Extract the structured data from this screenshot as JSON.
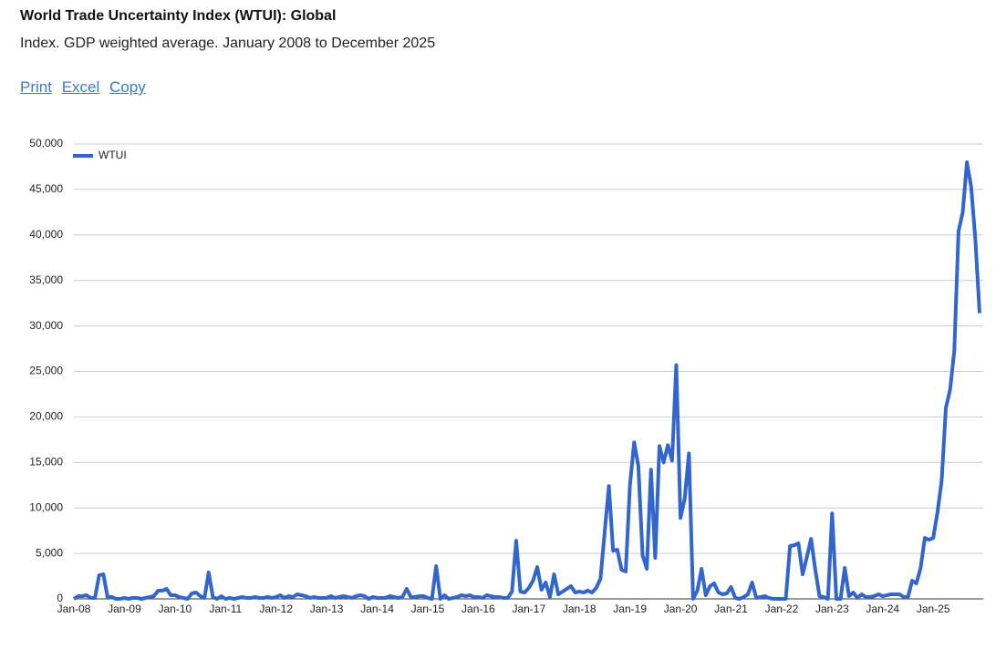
{
  "links": [
    "Print",
    "Excel",
    "Copy"
  ],
  "chart_data": {
    "type": "line",
    "title": "World Trade Uncertainty Index (WTUI): Global",
    "subtitle": "Index. GDP weighted average. January 2008 to December 2025",
    "categories": [
      "Jan-08",
      null,
      null,
      null,
      null,
      null,
      null,
      null,
      null,
      null,
      null,
      null,
      "Jan-09",
      null,
      null,
      null,
      null,
      null,
      null,
      null,
      null,
      null,
      null,
      null,
      "Jan-10",
      null,
      null,
      null,
      null,
      null,
      null,
      null,
      null,
      null,
      null,
      null,
      "Jan-11",
      null,
      null,
      null,
      null,
      null,
      null,
      null,
      null,
      null,
      null,
      null,
      "Jan-12",
      null,
      null,
      null,
      null,
      null,
      null,
      null,
      null,
      null,
      null,
      null,
      "Jan-13",
      null,
      null,
      null,
      null,
      null,
      null,
      null,
      null,
      null,
      null,
      null,
      "Jan-14",
      null,
      null,
      null,
      null,
      null,
      null,
      null,
      null,
      null,
      null,
      null,
      "Jan-15",
      null,
      null,
      null,
      null,
      null,
      null,
      null,
      null,
      null,
      null,
      null,
      "Jan-16",
      null,
      null,
      null,
      null,
      null,
      null,
      null,
      null,
      null,
      null,
      null,
      "Jan-17",
      null,
      null,
      null,
      null,
      null,
      null,
      null,
      null,
      null,
      null,
      null,
      "Jan-18",
      null,
      null,
      null,
      null,
      null,
      null,
      null,
      null,
      null,
      null,
      null,
      "Jan-19",
      null,
      null,
      null,
      null,
      null,
      null,
      null,
      null,
      null,
      null,
      null,
      "Jan-20",
      null,
      null,
      null,
      null,
      null,
      null,
      null,
      null,
      null,
      null,
      null,
      "Jan-21",
      null,
      null,
      null,
      null,
      null,
      null,
      null,
      null,
      null,
      null,
      null,
      "Jan-22",
      null,
      null,
      null,
      null,
      null,
      null,
      null,
      null,
      null,
      null,
      null,
      "Jan-23",
      null,
      null,
      null,
      null,
      null,
      null,
      null,
      null,
      null,
      null,
      null,
      "Jan-24",
      null,
      null,
      null,
      null,
      null,
      null,
      null,
      null,
      null,
      null,
      null,
      "Jan-25",
      null,
      null,
      null,
      null,
      null,
      null,
      null,
      null,
      null,
      null,
      null
    ],
    "series": [
      {
        "name": "WTUI",
        "color": "#3366cc",
        "values": [
          0,
          300,
          300,
          400,
          100,
          100,
          2600,
          2700,
          200,
          200,
          0,
          0,
          100,
          0,
          100,
          100,
          0,
          100,
          200,
          300,
          900,
          900,
          1100,
          400,
          400,
          200,
          100,
          0,
          600,
          700,
          300,
          100,
          2900,
          200,
          0,
          300,
          0,
          100,
          0,
          100,
          200,
          100,
          100,
          200,
          100,
          100,
          200,
          100,
          200,
          400,
          100,
          300,
          200,
          500,
          400,
          300,
          100,
          200,
          100,
          100,
          100,
          300,
          100,
          200,
          300,
          200,
          100,
          300,
          400,
          300,
          0,
          200,
          100,
          100,
          100,
          300,
          200,
          100,
          200,
          1100,
          200,
          200,
          300,
          300,
          100,
          0,
          3600,
          0,
          400,
          0,
          100,
          200,
          400,
          300,
          400,
          200,
          200,
          100,
          400,
          300,
          200,
          200,
          100,
          100,
          800,
          6400,
          800,
          700,
          1200,
          2000,
          3500,
          1000,
          1800,
          200,
          2700,
          500,
          800,
          1100,
          1400,
          700,
          800,
          700,
          900,
          700,
          1200,
          2200,
          7300,
          12400,
          5300,
          5400,
          3200,
          3000,
          12500,
          17200,
          14600,
          4800,
          3300,
          14200,
          4500,
          16800,
          15000,
          16900,
          15200,
          25700,
          8900,
          11000,
          16000,
          0,
          900,
          3300,
          400,
          1400,
          1700,
          700,
          500,
          600,
          1300,
          100,
          0,
          200,
          500,
          1800,
          100,
          200,
          300,
          100,
          0,
          0,
          0,
          0,
          5800,
          5900,
          6100,
          2700,
          4600,
          6600,
          3200,
          300,
          200,
          0,
          9400,
          0,
          0,
          3400,
          300,
          700,
          100,
          500,
          200,
          200,
          300,
          500,
          300,
          400,
          500,
          500,
          500,
          200,
          200,
          2000,
          1700,
          3400,
          6700,
          6500,
          6700,
          9500,
          13000,
          21000,
          23000,
          27300,
          40400,
          42500,
          48000,
          45300,
          39500,
          31400
        ]
      }
    ],
    "ylim": [
      0,
      50000
    ],
    "yticks": [
      0,
      {
        "value": 5000,
        "label": "5,000"
      },
      {
        "value": 10000,
        "label": "10,000"
      },
      {
        "value": 15000,
        "label": "15,000"
      },
      {
        "value": 20000,
        "label": "20,000"
      },
      {
        "value": 25000,
        "label": "25,000"
      },
      {
        "value": 30000,
        "label": "30,000"
      },
      {
        "value": 35000,
        "label": "35,000"
      },
      {
        "value": 40000,
        "label": "40,000"
      },
      {
        "value": 45000,
        "label": "45,000"
      },
      {
        "value": 50000,
        "label": "50,000"
      }
    ],
    "grid": true,
    "legend": "top-left"
  }
}
